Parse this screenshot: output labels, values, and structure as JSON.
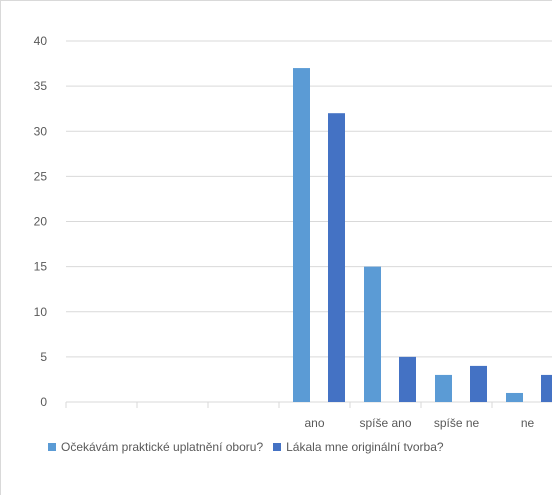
{
  "chart_data": {
    "type": "bar",
    "title": "",
    "xlabel": "",
    "ylabel": "",
    "ylim": [
      0,
      40
    ],
    "yticks": [
      "0",
      "5",
      "10",
      "15",
      "20",
      "25",
      "30",
      "35",
      "40"
    ],
    "grid": true,
    "legend_position": "bottom",
    "categories": [
      "",
      "",
      "",
      "ano",
      "spíše ano",
      "spíše ne",
      "ne"
    ],
    "series": [
      {
        "name": "Očekávám praktické uplatnění oboru?",
        "color": "#5b9bd5",
        "values": [
          null,
          null,
          null,
          37,
          15,
          3,
          1
        ]
      },
      {
        "name": "Lákala mne originální tvorba?",
        "color": "#4472c4",
        "values": [
          null,
          null,
          null,
          32,
          5,
          4,
          3
        ]
      }
    ]
  }
}
